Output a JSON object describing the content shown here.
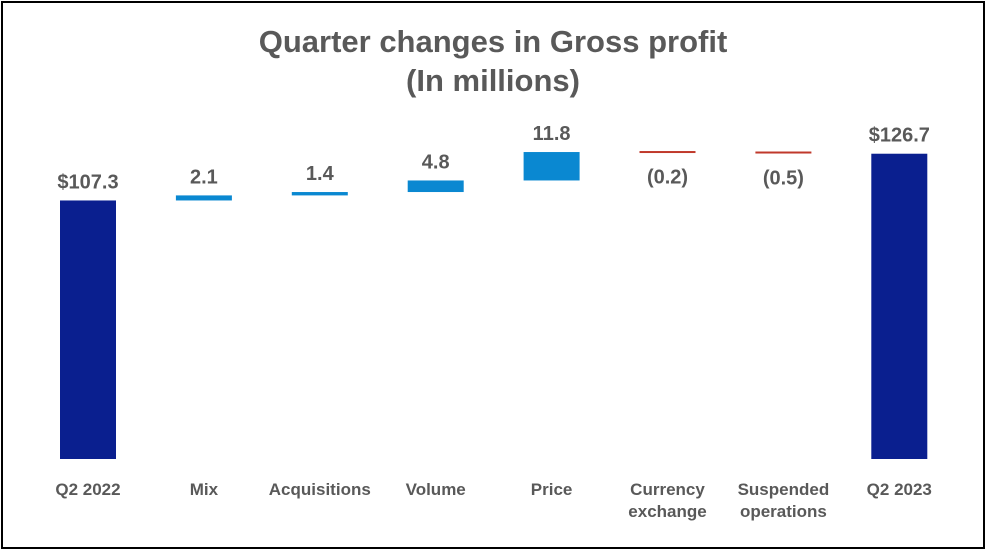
{
  "chart_data": {
    "type": "bar",
    "subtype": "waterfall",
    "title": "Quarter changes in Gross profit",
    "subtitle": "(In millions)",
    "categories": [
      "Q2 2022",
      "Mix",
      "Acquisitions",
      "Volume",
      "Price",
      "Currency exchange",
      "Suspended operations",
      "Q2 2023"
    ],
    "category_lines": [
      [
        "Q2 2022"
      ],
      [
        "Mix"
      ],
      [
        "Acquisitions"
      ],
      [
        "Volume"
      ],
      [
        "Price"
      ],
      [
        "Currency",
        "exchange"
      ],
      [
        "Suspended",
        "operations"
      ],
      [
        "Q2 2023"
      ]
    ],
    "values": [
      107.3,
      2.1,
      1.4,
      4.8,
      11.8,
      -0.2,
      -0.5,
      126.7
    ],
    "kinds": [
      "total",
      "delta",
      "delta",
      "delta",
      "delta",
      "delta",
      "delta",
      "total"
    ],
    "data_labels": [
      "$107.3",
      "2.1",
      "1.4",
      "4.8",
      "11.8",
      "(0.2)",
      "(0.5)",
      "$126.7"
    ],
    "colors": {
      "total": "#0a1f8f",
      "increase": "#0a88d1",
      "decrease": "#c0392b",
      "text": "#595959"
    },
    "ylim": [
      0,
      127
    ],
    "grid": false,
    "legend": "none",
    "xlabel": "",
    "ylabel": ""
  }
}
